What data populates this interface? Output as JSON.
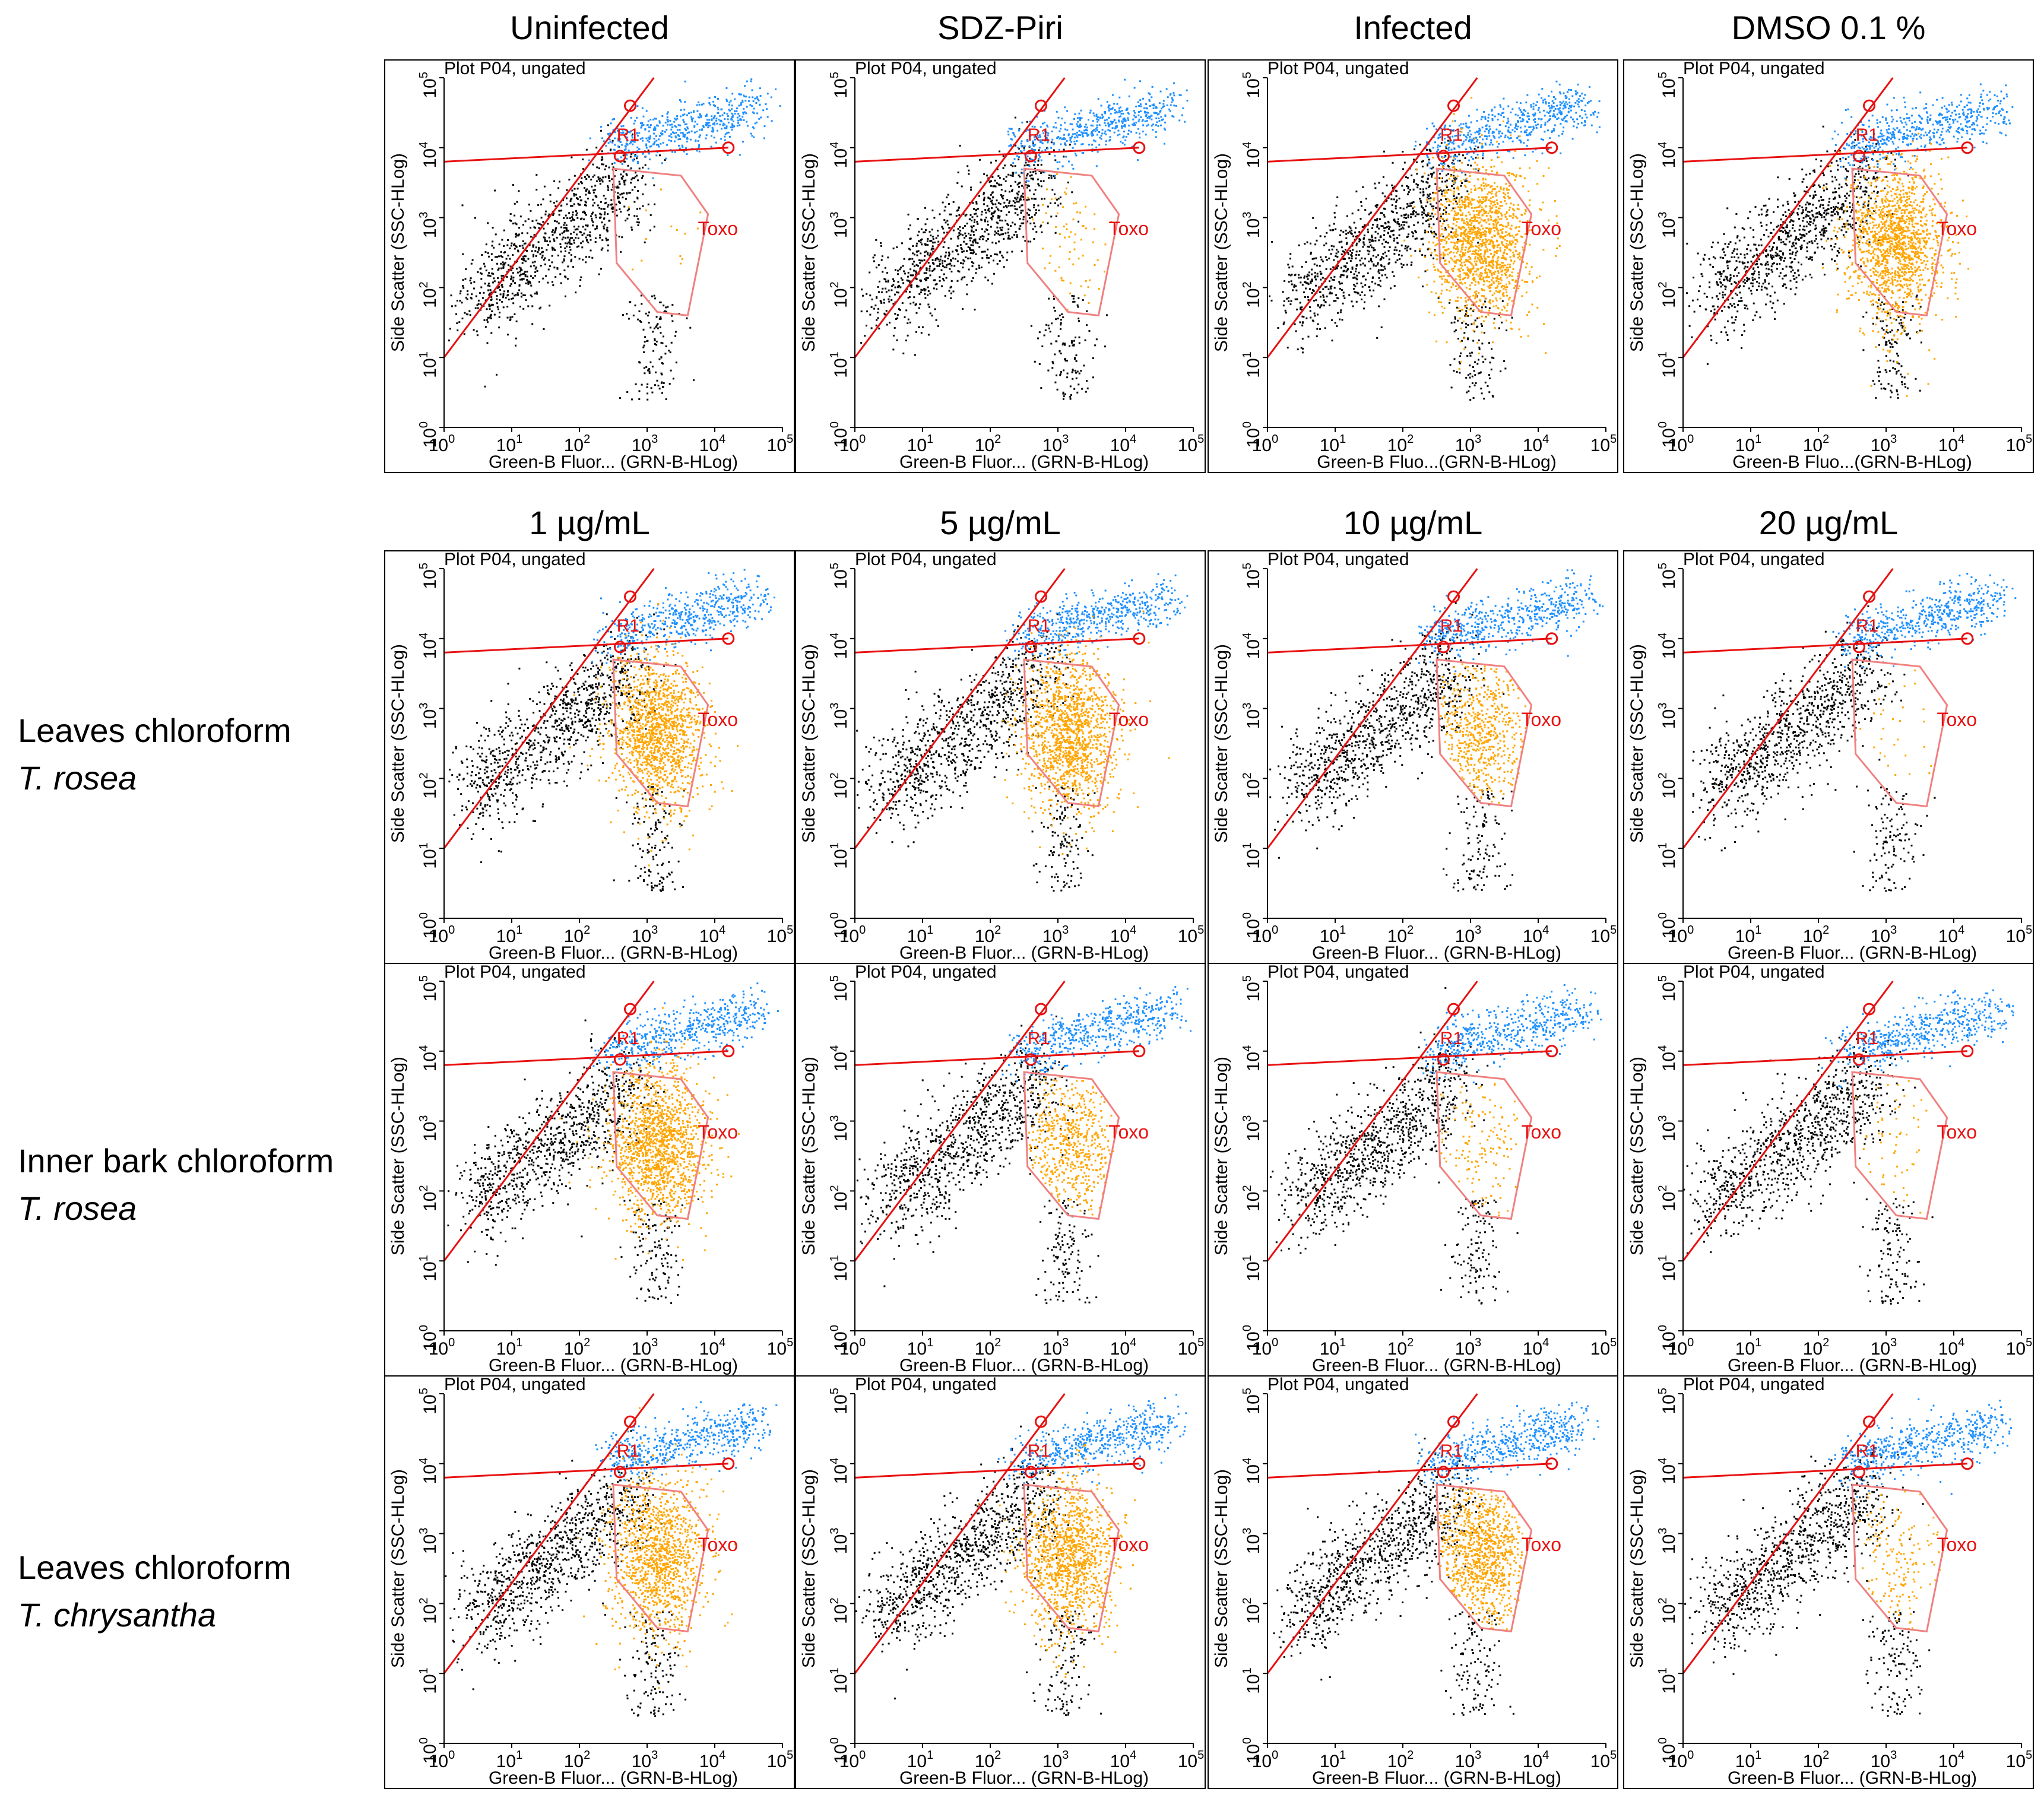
{
  "figure": {
    "top_headers": [
      "Uninfected",
      "SDZ-Piri",
      "Infected",
      "DMSO 0.1 %"
    ],
    "conc_headers": [
      "1 µg/mL",
      "5 µg/mL",
      "10 µg/mL",
      "20 µg/mL"
    ],
    "row_labels": [
      {
        "line1": "Leaves chloroform",
        "line2": "T. rosea"
      },
      {
        "line1": "Inner bark chloroform",
        "line2": "T. rosea"
      },
      {
        "line1": "Leaves chloroform",
        "line2": "T. chrysantha"
      }
    ],
    "plot_title": "Plot P04, ungated",
    "xlabels": [
      "Green-B Fluor... (GRN-B-HLog)",
      "Green-B Fluo...(GRN-B-HLog)"
    ],
    "ylabel": "Side Scatter (SSC-HLog)",
    "gate_labels": {
      "r1": "R1",
      "toxo": "Toxo"
    },
    "colors": {
      "cells": "#000000",
      "upper": "#1e90ff",
      "toxo": "#ffa500",
      "gate": "#e81010",
      "gate_light": "#f08080"
    }
  },
  "chart_data": {
    "type": "scatter",
    "description": "Flow cytometry dot plots, log-log axes 10^0..10^5, 4 rows x 4 columns",
    "xlim": [
      0,
      5
    ],
    "ylim": [
      0,
      5
    ],
    "tick_labels": [
      "0",
      "1",
      "2",
      "3",
      "4",
      "5"
    ],
    "xlabel": "Green-B Fluor... (GRN-B-HLog)",
    "ylabel": "Side Scatter (SSC-HLog)",
    "r1_gate": {
      "diag": [
        [
          0,
          1.0
        ],
        [
          3.1,
          5.0
        ]
      ],
      "horiz": [
        [
          0,
          3.8
        ],
        [
          4.2,
          4.0
        ]
      ]
    },
    "toxo_gate": [
      [
        2.5,
        3.7
      ],
      [
        3.5,
        3.6
      ],
      [
        3.9,
        3.05
      ],
      [
        3.6,
        1.6
      ],
      [
        3.15,
        1.65
      ],
      [
        2.55,
        2.35
      ]
    ],
    "panels": [
      {
        "row": 0,
        "col": 0,
        "toxo_density": 0.01
      },
      {
        "row": 0,
        "col": 1,
        "toxo_density": 0.05
      },
      {
        "row": 0,
        "col": 2,
        "toxo_density": 1.0
      },
      {
        "row": 0,
        "col": 3,
        "toxo_density": 1.0
      },
      {
        "row": 1,
        "col": 0,
        "toxo_density": 1.0
      },
      {
        "row": 1,
        "col": 1,
        "toxo_density": 0.95
      },
      {
        "row": 1,
        "col": 2,
        "toxo_density": 0.4
      },
      {
        "row": 1,
        "col": 3,
        "toxo_density": 0.02
      },
      {
        "row": 2,
        "col": 0,
        "toxo_density": 1.0
      },
      {
        "row": 2,
        "col": 1,
        "toxo_density": 0.4
      },
      {
        "row": 2,
        "col": 2,
        "toxo_density": 0.1
      },
      {
        "row": 2,
        "col": 3,
        "toxo_density": 0.04
      },
      {
        "row": 3,
        "col": 0,
        "toxo_density": 0.85
      },
      {
        "row": 3,
        "col": 1,
        "toxo_density": 0.85
      },
      {
        "row": 3,
        "col": 2,
        "toxo_density": 0.65
      },
      {
        "row": 3,
        "col": 3,
        "toxo_density": 0.12
      }
    ]
  }
}
